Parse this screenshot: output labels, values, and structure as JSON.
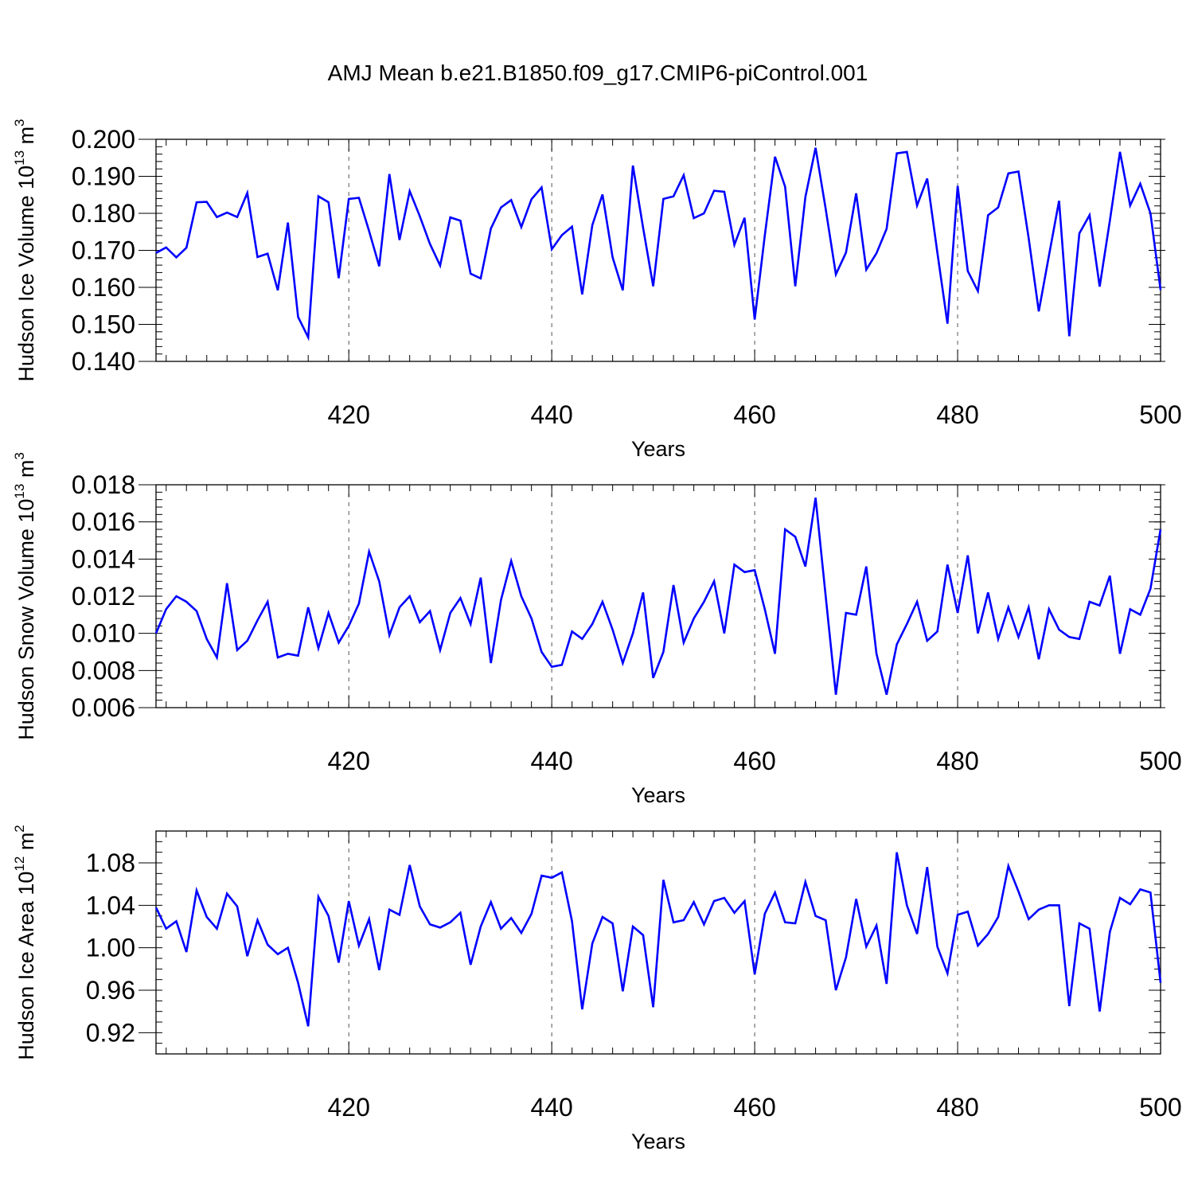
{
  "title": "AMJ Mean b.e21.B1850.f09_g17.CMIP6-piControl.001",
  "line_color": "#0000ff",
  "chart_data": [
    {
      "type": "line",
      "ylabel": {
        "pre": "Hudson Ice Volume 10",
        "exp": "13",
        "post": " m",
        "unit_exp": "3"
      },
      "xlabel": "Years",
      "xlim": [
        401,
        500
      ],
      "ylim": [
        0.14,
        0.2
      ],
      "yticks": [
        0.14,
        0.15,
        0.16,
        0.17,
        0.18,
        0.19,
        0.2
      ],
      "ytick_labels": [
        "0.140",
        "0.150",
        "0.160",
        "0.170",
        "0.180",
        "0.190",
        "0.200"
      ],
      "yminor_step": 0.002,
      "xticks": [
        420,
        440,
        460,
        480,
        500
      ],
      "xtick_labels": [
        "420",
        "440",
        "460",
        "480",
        "500"
      ],
      "vgrid": [
        420,
        440,
        460,
        480
      ],
      "x_start": 401,
      "series": [
        {
          "values": [
            0.1693,
            0.1708,
            0.1681,
            0.1707,
            0.183,
            0.1831,
            0.179,
            0.1802,
            0.179,
            0.1855,
            0.1682,
            0.1691,
            0.1592,
            0.1775,
            0.152,
            0.1465,
            0.1846,
            0.183,
            0.1625,
            0.1839,
            0.1842,
            0.1752,
            0.1657,
            0.1906,
            0.1728,
            0.186,
            0.1792,
            0.1717,
            0.1659,
            0.1789,
            0.178,
            0.1637,
            0.1624,
            0.1759,
            0.1816,
            0.1836,
            0.1763,
            0.1838,
            0.187,
            0.1703,
            0.1741,
            0.1764,
            0.1581,
            0.1768,
            0.1851,
            0.1681,
            0.1592,
            0.1929,
            0.1761,
            0.1603,
            0.1839,
            0.1846,
            0.1903,
            0.1787,
            0.18,
            0.1861,
            0.1858,
            0.1715,
            0.1788,
            0.1513,
            0.174,
            0.1953,
            0.1872,
            0.1603,
            0.1844,
            0.1977,
            0.1812,
            0.1635,
            0.1694,
            0.1854,
            0.1648,
            0.1692,
            0.1758,
            0.1962,
            0.1966,
            0.1821,
            0.1894,
            0.1694,
            0.1502,
            0.1874,
            0.1644,
            0.159,
            0.1795,
            0.1816,
            0.1908,
            0.1913,
            0.1733,
            0.1535,
            0.1686,
            0.1834,
            0.1468,
            0.1746,
            0.1795,
            0.1602,
            0.178,
            0.1966,
            0.1821,
            0.188,
            0.18,
            0.1593
          ]
        }
      ]
    },
    {
      "type": "line",
      "ylabel": {
        "pre": "Hudson Snow Volume 10",
        "exp": "13",
        "post": " m",
        "unit_exp": "3"
      },
      "xlabel": "Years",
      "xlim": [
        401,
        500
      ],
      "ylim": [
        0.006,
        0.018
      ],
      "yticks": [
        0.006,
        0.008,
        0.01,
        0.012,
        0.014,
        0.016,
        0.018
      ],
      "ytick_labels": [
        "0.006",
        "0.008",
        "0.010",
        "0.012",
        "0.014",
        "0.016",
        "0.018"
      ],
      "yminor_step": 0.0004,
      "xticks": [
        420,
        440,
        460,
        480,
        500
      ],
      "xtick_labels": [
        "420",
        "440",
        "460",
        "480",
        "500"
      ],
      "vgrid": [
        420,
        440,
        460,
        480
      ],
      "x_start": 401,
      "series": [
        {
          "values": [
            0.01,
            0.0113,
            0.012,
            0.0117,
            0.0112,
            0.0097,
            0.0087,
            0.0127,
            0.0091,
            0.0096,
            0.0107,
            0.0117,
            0.0087,
            0.0089,
            0.0088,
            0.0114,
            0.0092,
            0.0111,
            0.0095,
            0.0104,
            0.0116,
            0.0144,
            0.0128,
            0.0099,
            0.0114,
            0.012,
            0.0106,
            0.0112,
            0.0091,
            0.0111,
            0.0119,
            0.0105,
            0.013,
            0.0084,
            0.0118,
            0.0139,
            0.012,
            0.0108,
            0.009,
            0.0082,
            0.0083,
            0.0101,
            0.0097,
            0.0105,
            0.0117,
            0.0102,
            0.0084,
            0.01,
            0.0122,
            0.0076,
            0.009,
            0.0126,
            0.0095,
            0.0108,
            0.0117,
            0.0128,
            0.01,
            0.0137,
            0.0133,
            0.0134,
            0.0113,
            0.0089,
            0.0156,
            0.0152,
            0.0136,
            0.0173,
            0.012,
            0.0067,
            0.0111,
            0.011,
            0.0136,
            0.0089,
            0.0067,
            0.0094,
            0.0105,
            0.0117,
            0.0096,
            0.0101,
            0.0137,
            0.0111,
            0.0142,
            0.01,
            0.0122,
            0.0097,
            0.0114,
            0.0098,
            0.0114,
            0.0086,
            0.0113,
            0.0102,
            0.0098,
            0.0097,
            0.0117,
            0.0115,
            0.0131,
            0.0089,
            0.0113,
            0.011,
            0.0124,
            0.0156
          ]
        }
      ]
    },
    {
      "type": "line",
      "ylabel": {
        "pre": "Hudson Ice Area 10",
        "exp": "12",
        "post": " m",
        "unit_exp": "2"
      },
      "xlabel": "Years",
      "xlim": [
        401,
        500
      ],
      "ylim": [
        0.9,
        1.11
      ],
      "yticks": [
        0.92,
        0.96,
        1.0,
        1.04,
        1.08
      ],
      "ytick_labels": [
        "0.92",
        "0.96",
        "1.00",
        "1.04",
        "1.08"
      ],
      "yminor_step": 0.01,
      "xticks": [
        420,
        440,
        460,
        480,
        500
      ],
      "xtick_labels": [
        "420",
        "440",
        "460",
        "480",
        "500"
      ],
      "vgrid": [
        420,
        440,
        460,
        480
      ],
      "x_start": 401,
      "series": [
        {
          "values": [
            1.038,
            1.018,
            1.025,
            0.996,
            1.054,
            1.029,
            1.018,
            1.051,
            1.039,
            0.992,
            1.026,
            1.003,
            0.994,
            1.0,
            0.967,
            0.926,
            1.048,
            1.03,
            0.986,
            1.044,
            1.002,
            1.027,
            0.979,
            1.036,
            1.031,
            1.078,
            1.039,
            1.022,
            1.019,
            1.024,
            1.033,
            0.984,
            1.02,
            1.043,
            1.018,
            1.028,
            1.014,
            1.032,
            1.068,
            1.066,
            1.071,
            1.025,
            0.942,
            1.004,
            1.029,
            1.023,
            0.959,
            1.02,
            1.012,
            0.944,
            1.064,
            1.024,
            1.026,
            1.043,
            1.022,
            1.044,
            1.047,
            1.033,
            1.044,
            0.975,
            1.032,
            1.052,
            1.024,
            1.023,
            1.062,
            1.03,
            1.026,
            0.96,
            0.991,
            1.046,
            1.001,
            1.021,
            0.966,
            1.09,
            1.04,
            1.013,
            1.076,
            1.001,
            0.976,
            1.031,
            1.034,
            1.002,
            1.013,
            1.029,
            1.077,
            1.053,
            1.027,
            1.036,
            1.04,
            1.04,
            0.945,
            1.023,
            1.018,
            0.94,
            1.015,
            1.047,
            1.041,
            1.055,
            1.052,
            0.967
          ]
        }
      ]
    }
  ]
}
